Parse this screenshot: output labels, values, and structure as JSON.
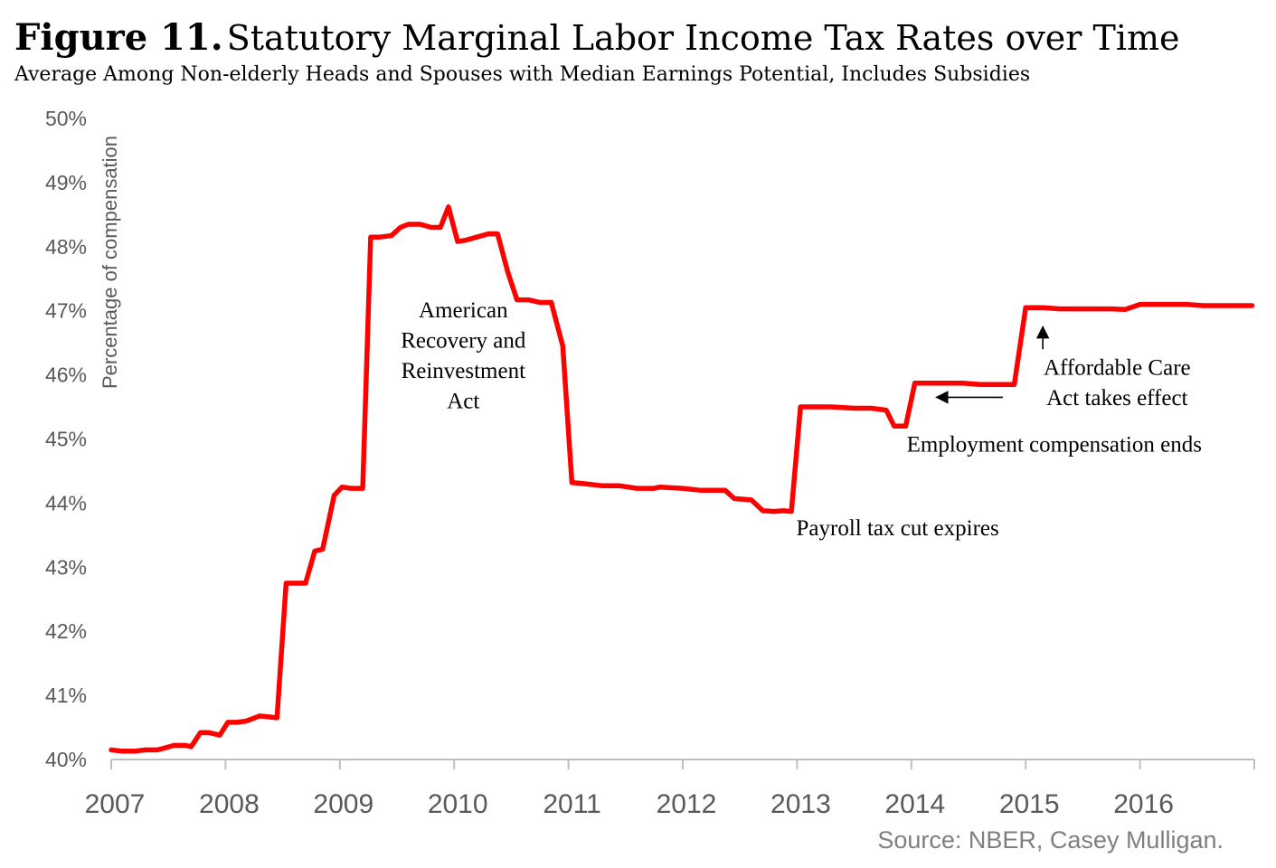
{
  "header": {
    "figure_number": "Figure 11.",
    "title": "Statutory Marginal Labor Income Tax Rates over Time",
    "subtitle": "Average Among Non-elderly Heads and Spouses with Median Earnings Potential, Includes Subsidies"
  },
  "source": "Source: NBER, Casey Mulligan.",
  "colors": {
    "series": "#ff0000",
    "axis": "#bfbfbf",
    "tick_text": "#595959",
    "source_text": "#7f7f7f"
  },
  "chart_data": {
    "type": "line",
    "title": "Statutory Marginal Labor Income Tax Rates over Time",
    "subtitle": "Average Among Non-elderly Heads and Spouses with Median Earnings Potential, Includes Subsidies",
    "xlabel": "",
    "ylabel": "Percentage of compensation",
    "xlim": [
      2007,
      2017
    ],
    "ylim": [
      40,
      50
    ],
    "x_ticks": [
      "2007",
      "2008",
      "2009",
      "2010",
      "2011",
      "2012",
      "2013",
      "2014",
      "2015",
      "2016"
    ],
    "y_ticks": [
      "40%",
      "41%",
      "42%",
      "43%",
      "44%",
      "45%",
      "46%",
      "47%",
      "48%",
      "49%",
      "50%"
    ],
    "grid": false,
    "series": [
      {
        "points": [
          [
            2007.0,
            40.15
          ],
          [
            2007.1,
            40.13
          ],
          [
            2007.2,
            40.13
          ],
          [
            2007.3,
            40.15
          ],
          [
            2007.4,
            40.15
          ],
          [
            2007.45,
            40.17
          ],
          [
            2007.55,
            40.22
          ],
          [
            2007.65,
            40.22
          ],
          [
            2007.7,
            40.2
          ],
          [
            2007.78,
            40.42
          ],
          [
            2007.85,
            40.42
          ],
          [
            2007.95,
            40.38
          ],
          [
            2008.02,
            40.58
          ],
          [
            2008.1,
            40.58
          ],
          [
            2008.18,
            40.6
          ],
          [
            2008.3,
            40.68
          ],
          [
            2008.35,
            40.67
          ],
          [
            2008.45,
            40.65
          ],
          [
            2008.53,
            42.75
          ],
          [
            2008.6,
            42.75
          ],
          [
            2008.7,
            42.75
          ],
          [
            2008.78,
            43.25
          ],
          [
            2008.85,
            43.28
          ],
          [
            2008.95,
            44.12
          ],
          [
            2009.02,
            44.25
          ],
          [
            2009.1,
            44.23
          ],
          [
            2009.2,
            44.23
          ],
          [
            2009.27,
            48.15
          ],
          [
            2009.35,
            48.15
          ],
          [
            2009.45,
            48.17
          ],
          [
            2009.53,
            48.3
          ],
          [
            2009.6,
            48.35
          ],
          [
            2009.7,
            48.35
          ],
          [
            2009.8,
            48.3
          ],
          [
            2009.88,
            48.3
          ],
          [
            2009.95,
            48.62
          ],
          [
            2010.03,
            48.08
          ],
          [
            2010.1,
            48.1
          ],
          [
            2010.2,
            48.15
          ],
          [
            2010.3,
            48.2
          ],
          [
            2010.38,
            48.2
          ],
          [
            2010.47,
            47.6
          ],
          [
            2010.55,
            47.17
          ],
          [
            2010.65,
            47.17
          ],
          [
            2010.75,
            47.13
          ],
          [
            2010.85,
            47.13
          ],
          [
            2010.95,
            46.45
          ],
          [
            2011.03,
            44.32
          ],
          [
            2011.15,
            44.3
          ],
          [
            2011.3,
            44.27
          ],
          [
            2011.45,
            44.27
          ],
          [
            2011.6,
            44.23
          ],
          [
            2011.75,
            44.23
          ],
          [
            2011.8,
            44.25
          ],
          [
            2012.0,
            44.23
          ],
          [
            2012.15,
            44.2
          ],
          [
            2012.3,
            44.2
          ],
          [
            2012.37,
            44.2
          ],
          [
            2012.45,
            44.07
          ],
          [
            2012.6,
            44.05
          ],
          [
            2012.7,
            43.88
          ],
          [
            2012.8,
            43.87
          ],
          [
            2012.88,
            43.88
          ],
          [
            2012.95,
            43.87
          ],
          [
            2013.03,
            45.5
          ],
          [
            2013.15,
            45.5
          ],
          [
            2013.3,
            45.5
          ],
          [
            2013.5,
            45.48
          ],
          [
            2013.65,
            45.48
          ],
          [
            2013.78,
            45.45
          ],
          [
            2013.85,
            45.2
          ],
          [
            2013.95,
            45.2
          ],
          [
            2014.03,
            45.87
          ],
          [
            2014.2,
            45.87
          ],
          [
            2014.45,
            45.87
          ],
          [
            2014.6,
            45.85
          ],
          [
            2014.9,
            45.85
          ],
          [
            2015.0,
            47.05
          ],
          [
            2015.15,
            47.05
          ],
          [
            2015.3,
            47.03
          ],
          [
            2015.5,
            47.03
          ],
          [
            2015.75,
            47.03
          ],
          [
            2015.87,
            47.02
          ],
          [
            2016.0,
            47.1
          ],
          [
            2016.25,
            47.1
          ],
          [
            2016.4,
            47.1
          ],
          [
            2016.55,
            47.08
          ],
          [
            2016.78,
            47.08
          ],
          [
            2016.98,
            47.08
          ]
        ]
      }
    ],
    "annotations": [
      {
        "id": "arra",
        "lines": [
          "American",
          "Recovery and",
          "Reinvestment",
          "Act"
        ],
        "x": 2010.08,
        "y": 46.9
      },
      {
        "id": "payroll",
        "lines": [
          "Payroll tax cut expires"
        ],
        "x": 2013.88,
        "y": 43.5
      },
      {
        "id": "employment",
        "lines": [
          "Employment compensation ends"
        ],
        "x": 2015.25,
        "y": 44.8
      },
      {
        "id": "aca",
        "lines": [
          "Affordable Care",
          "Act takes effect"
        ],
        "x": 2015.8,
        "y": 46.0
      }
    ],
    "arrows": [
      {
        "id": "employment-arrow",
        "from": [
          2014.8,
          45.65
        ],
        "to": [
          2014.22,
          45.65
        ]
      },
      {
        "id": "aca-arrow",
        "from": [
          2015.15,
          46.4
        ],
        "to": [
          2015.15,
          46.75
        ]
      }
    ]
  }
}
